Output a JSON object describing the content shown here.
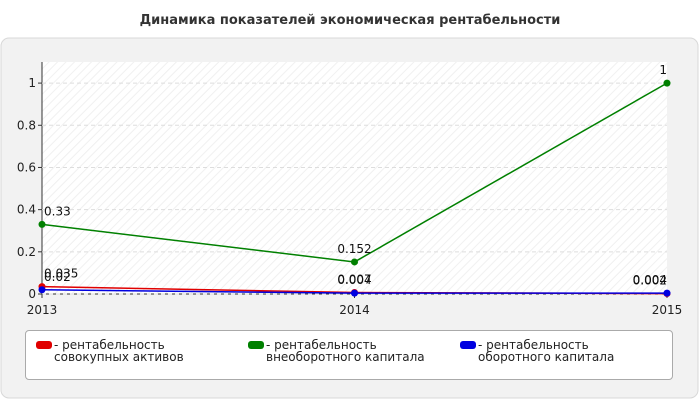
{
  "chart_data": {
    "type": "line",
    "title": "Динамика показателей экономическая рентабельности",
    "categories": [
      "2013",
      "2014",
      "2015"
    ],
    "series": [
      {
        "name": "- рентабельность совокупных активов",
        "color": "#e00000",
        "values": [
          0.035,
          0.007,
          0.002
        ]
      },
      {
        "name": "- рентабельность внеоборотного капитала",
        "color": "#008000",
        "values": [
          0.33,
          0.152,
          1
        ]
      },
      {
        "name": "- рентабельность оборотного капитала",
        "color": "#0000e0",
        "values": [
          0.02,
          0.004,
          0.004
        ]
      }
    ],
    "ylim": [
      0,
      1.1
    ],
    "yticks": [
      0,
      0.2,
      0.4,
      0.6,
      0.8,
      1
    ],
    "grid": true
  }
}
